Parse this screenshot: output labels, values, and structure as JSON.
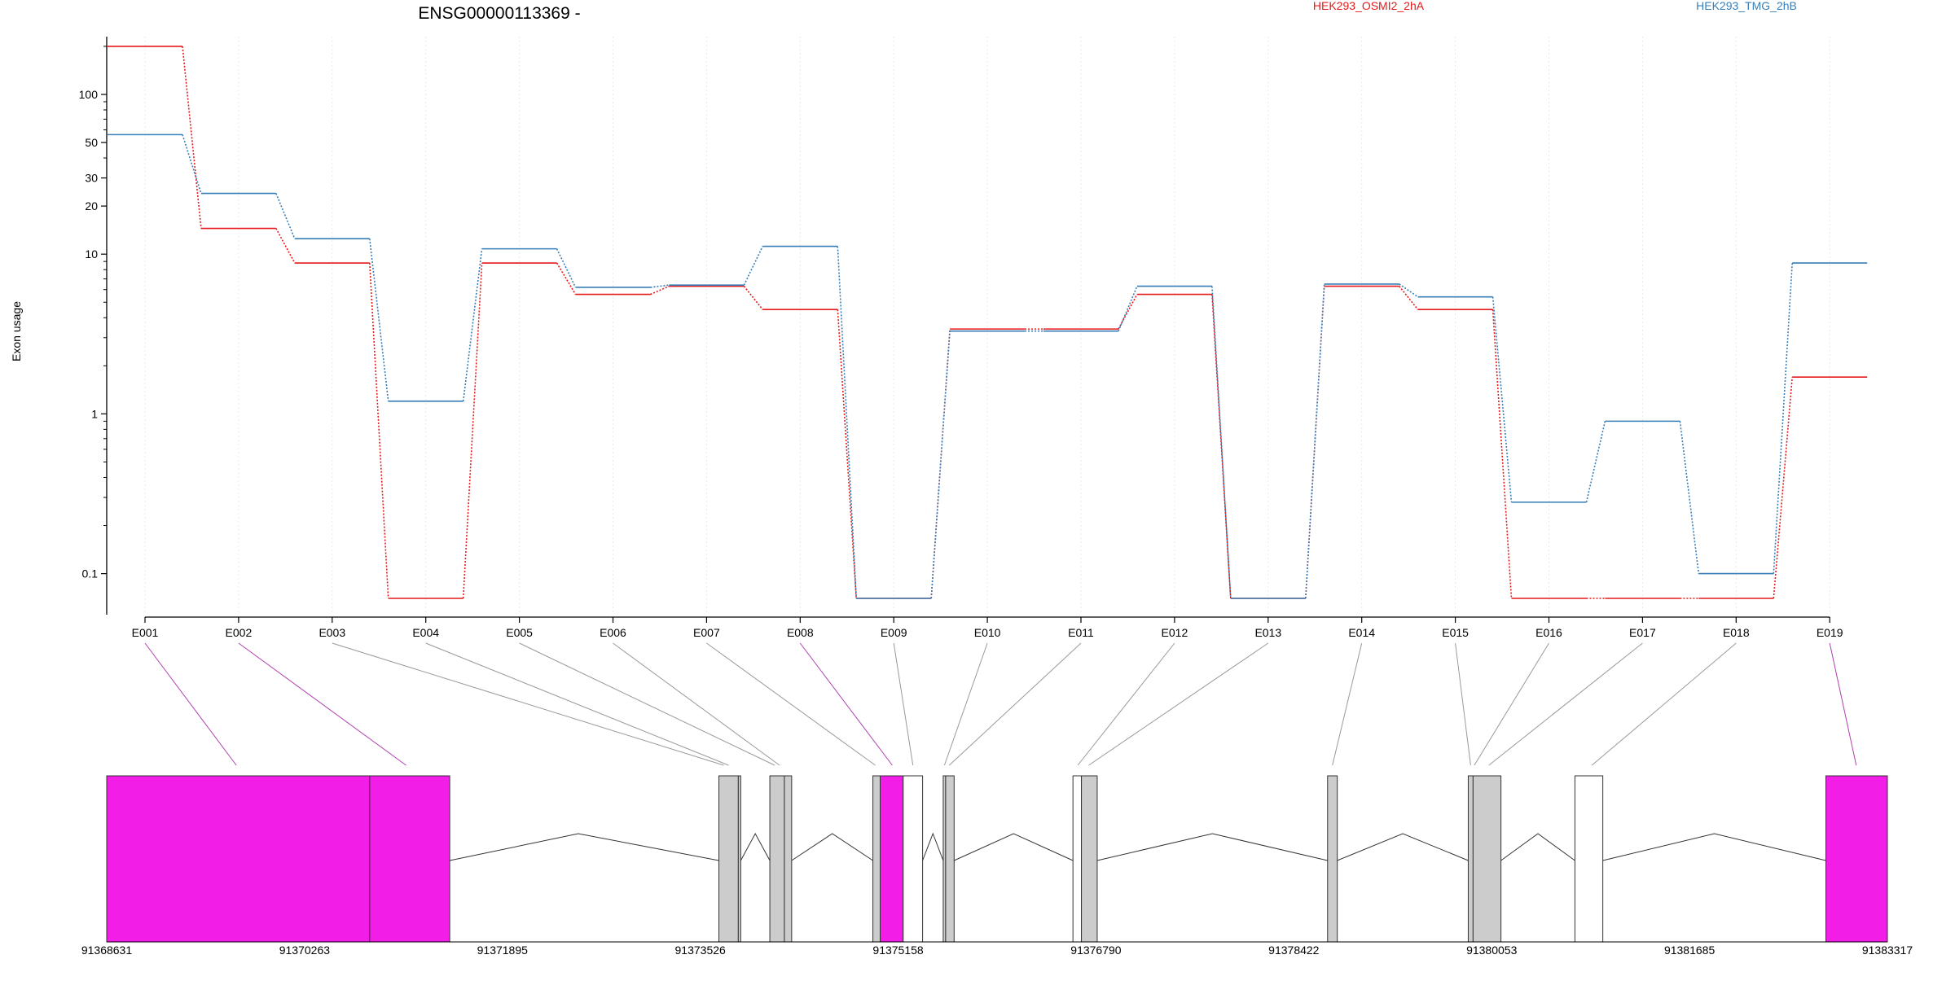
{
  "chart_data": {
    "type": "line",
    "title": "ENSG00000113369 -",
    "ylabel": "Exon usage",
    "yscale": "log",
    "ylim": [
      0.07,
      230
    ],
    "yticks": [
      0.1,
      1,
      10,
      20,
      30,
      50,
      100
    ],
    "ytick_labels": [
      "0.1",
      "1",
      "10",
      "20",
      "30",
      "50",
      "100"
    ],
    "grid": "vertical",
    "categories": [
      "E001",
      "E002",
      "E003",
      "E004",
      "E005",
      "E006",
      "E007",
      "E008",
      "E009",
      "E010",
      "E011",
      "E012",
      "E013",
      "E014",
      "E015",
      "E016",
      "E017",
      "E018",
      "E019"
    ],
    "series": [
      {
        "name": "HEK293_OSMI2_2hA",
        "color": "#e41a1c",
        "values": [
          200,
          14.5,
          8.8,
          0.07,
          8.8,
          5.6,
          6.3,
          4.5,
          0.07,
          3.4,
          3.4,
          5.6,
          0.07,
          6.3,
          4.5,
          0.07,
          0.07,
          0.07,
          1.7
        ]
      },
      {
        "name": "HEK293_TMG_2hB",
        "color": "#377eb8",
        "values": [
          56,
          24,
          12.5,
          1.2,
          10.8,
          6.2,
          6.4,
          11.2,
          0.07,
          3.3,
          3.3,
          6.3,
          0.07,
          6.5,
          5.4,
          0.28,
          0.9,
          0.1,
          8.8
        ]
      }
    ],
    "gene_model": {
      "coordinate_labels": [
        "91368631",
        "91370263",
        "91371895",
        "91373526",
        "91375158",
        "91376790",
        "91378422",
        "91380053",
        "91381685",
        "91383317"
      ],
      "xlim": [
        91368631,
        91383317
      ],
      "highlight_color": "#f21ee8",
      "exon_color": "#cccccc",
      "exons": [
        {
          "start": 91368631,
          "end": 91370800,
          "fill": "highlight"
        },
        {
          "start": 91370800,
          "end": 91371460,
          "fill": "highlight"
        },
        {
          "start": 91373680,
          "end": 91373840,
          "fill": "exon"
        },
        {
          "start": 91373840,
          "end": 91373860,
          "fill": "exon"
        },
        {
          "start": 91374100,
          "end": 91374220,
          "fill": "exon"
        },
        {
          "start": 91374220,
          "end": 91374280,
          "fill": "exon"
        },
        {
          "start": 91374950,
          "end": 91375010,
          "fill": "exon"
        },
        {
          "start": 91375010,
          "end": 91375200,
          "fill": "highlight"
        },
        {
          "start": 91375200,
          "end": 91375360,
          "fill": "white"
        },
        {
          "start": 91375530,
          "end": 91375550,
          "fill": "exon"
        },
        {
          "start": 91375550,
          "end": 91375620,
          "fill": "exon"
        },
        {
          "start": 91376600,
          "end": 91376670,
          "fill": "white"
        },
        {
          "start": 91376670,
          "end": 91376800,
          "fill": "exon"
        },
        {
          "start": 91378700,
          "end": 91378780,
          "fill": "exon"
        },
        {
          "start": 91379860,
          "end": 91379900,
          "fill": "exon"
        },
        {
          "start": 91379900,
          "end": 91380130,
          "fill": "exon"
        },
        {
          "start": 91380740,
          "end": 91380970,
          "fill": "white"
        },
        {
          "start": 91382810,
          "end": 91383317,
          "fill": "highlight"
        }
      ],
      "introns": [
        [
          91371460,
          91373680,
          91372520
        ],
        [
          91373860,
          91374100,
          91373980
        ],
        [
          91374280,
          91374950,
          91374615
        ],
        [
          91375360,
          91375530,
          91375445
        ],
        [
          91375620,
          91376600,
          91376110
        ],
        [
          91376800,
          91378700,
          91377750
        ],
        [
          91378780,
          91379860,
          91379320
        ],
        [
          91380130,
          91380740,
          91380435
        ],
        [
          91380970,
          91382810,
          91381890
        ]
      ],
      "connectors": [
        {
          "exon": "E001",
          "coord": 91369700,
          "color": "highlight"
        },
        {
          "exon": "E002",
          "coord": 91371100,
          "color": "highlight"
        },
        {
          "exon": "E003",
          "coord": 91373720,
          "color": "gray"
        },
        {
          "exon": "E004",
          "coord": 91373760,
          "color": "gray"
        },
        {
          "exon": "E005",
          "coord": 91374140,
          "color": "gray"
        },
        {
          "exon": "E006",
          "coord": 91374180,
          "color": "gray"
        },
        {
          "exon": "E007",
          "coord": 91374970,
          "color": "gray"
        },
        {
          "exon": "E008",
          "coord": 91375110,
          "color": "highlight"
        },
        {
          "exon": "E009",
          "coord": 91375280,
          "color": "gray"
        },
        {
          "exon": "E010",
          "coord": 91375540,
          "color": "gray"
        },
        {
          "exon": "E011",
          "coord": 91375580,
          "color": "gray"
        },
        {
          "exon": "E012",
          "coord": 91376640,
          "color": "gray"
        },
        {
          "exon": "E013",
          "coord": 91376730,
          "color": "gray"
        },
        {
          "exon": "E014",
          "coord": 91378740,
          "color": "gray"
        },
        {
          "exon": "E015",
          "coord": 91379880,
          "color": "gray"
        },
        {
          "exon": "E016",
          "coord": 91379910,
          "color": "gray"
        },
        {
          "exon": "E017",
          "coord": 91380030,
          "color": "gray"
        },
        {
          "exon": "E018",
          "coord": 91380880,
          "color": "gray"
        },
        {
          "exon": "E019",
          "coord": 91383060,
          "color": "highlight"
        }
      ]
    }
  }
}
